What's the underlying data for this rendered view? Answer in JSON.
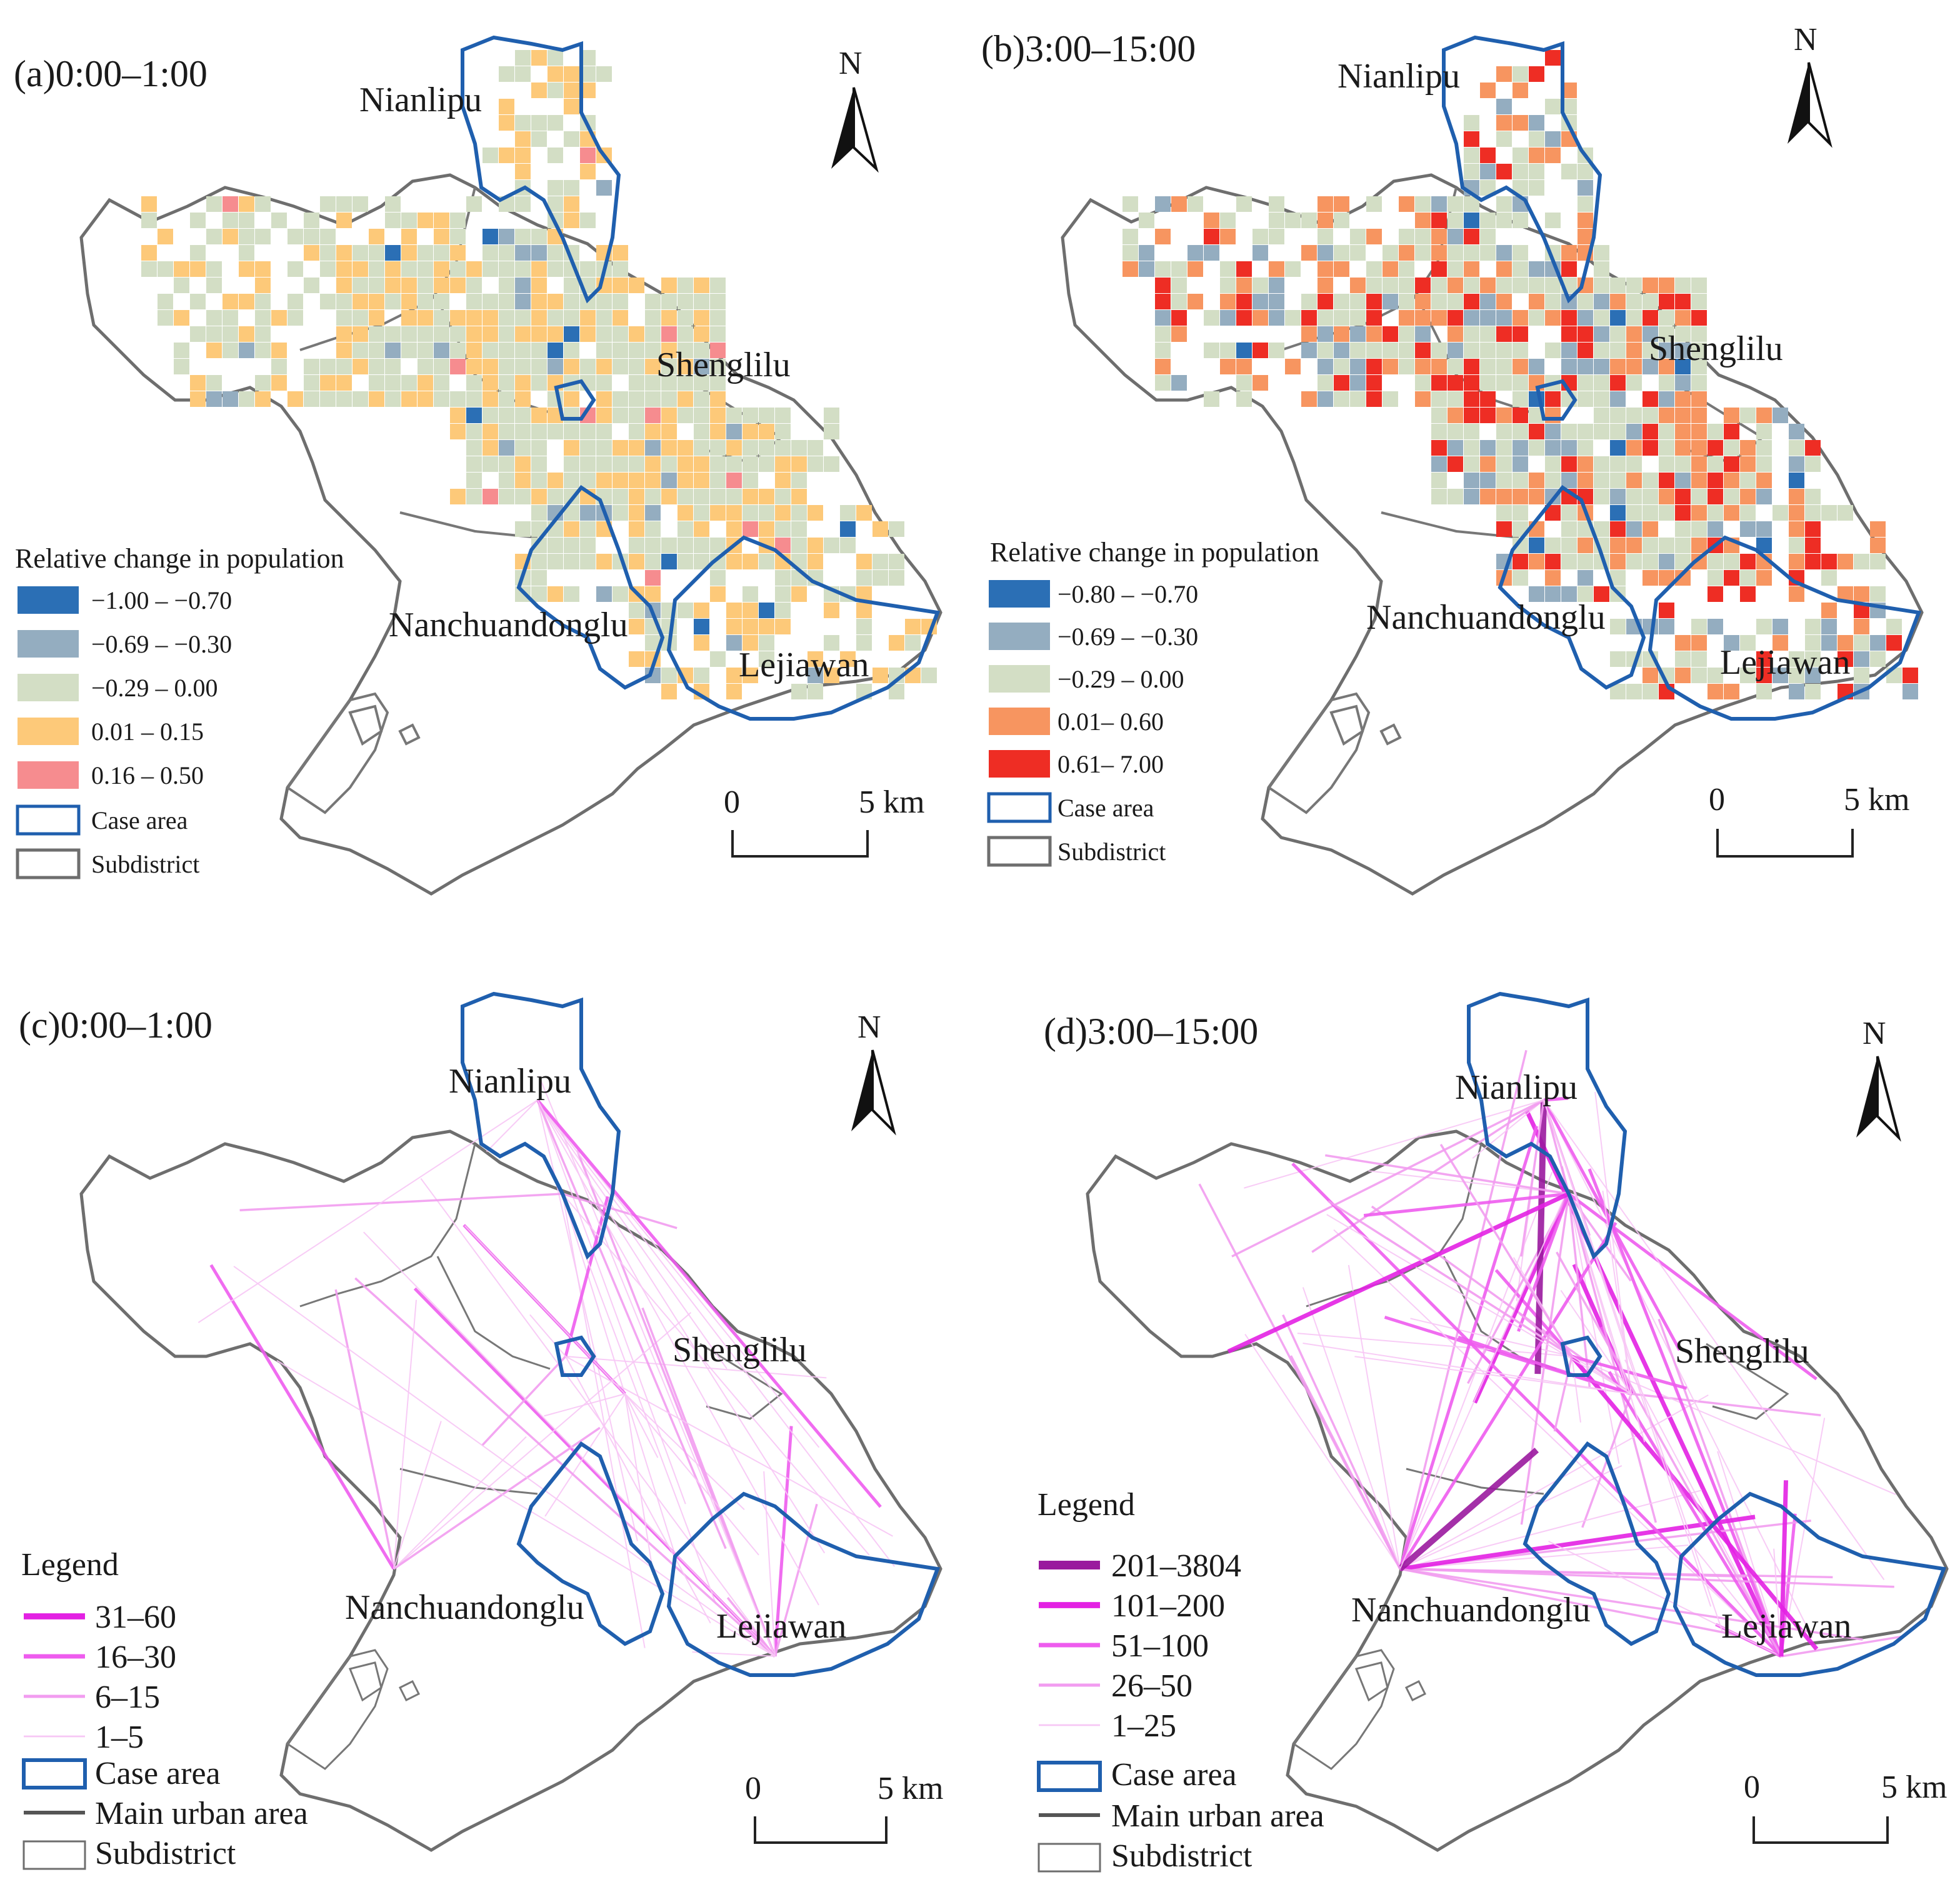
{
  "panels": {
    "a": {
      "title": "(a)0:00–1:00",
      "labels": {
        "nianlipu": "Nianlipu",
        "shenglilu": "Shenglilu",
        "nanchuandonglu": "Nanchuandonglu",
        "lejiawan": "Lejiawan"
      },
      "legend_title": "Relative change in population",
      "legend": [
        {
          "label": "−1.00 – −0.70",
          "color": "#2b6fb5"
        },
        {
          "label": "−0.69 – −0.30",
          "color": "#94adc0"
        },
        {
          "label": "−0.29 – 0.00",
          "color": "#d3dec5"
        },
        {
          "label": "0.01 – 0.15",
          "color": "#fdc979"
        },
        {
          "label": "0.16 – 0.50",
          "color": "#f68c8f"
        }
      ],
      "case_area_label": "Case area",
      "subdistrict_label": "Subdistrict",
      "scale": {
        "zero": "0",
        "end": "5 km"
      },
      "north": "N"
    },
    "b": {
      "title": "(b)3:00–15:00",
      "labels": {
        "nianlipu": "Nianlipu",
        "shenglilu": "Shenglilu",
        "nanchuandonglu": "Nanchuandonglu",
        "lejiawan": "Lejiawan"
      },
      "legend_title": "Relative change in population",
      "legend": [
        {
          "label": "−0.80 – −0.70",
          "color": "#2b6fb5"
        },
        {
          "label": "−0.69 – −0.30",
          "color": "#94adc0"
        },
        {
          "label": "−0.29 – 0.00",
          "color": "#d3dec5"
        },
        {
          "label": "0.01– 0.60",
          "color": "#f79560"
        },
        {
          "label": "0.61– 7.00",
          "color": "#ee2d24"
        }
      ],
      "case_area_label": "Case area",
      "subdistrict_label": "Subdistrict",
      "scale": {
        "zero": "0",
        "end": "5 km"
      },
      "north": "N"
    },
    "c": {
      "title": "(c)0:00–1:00",
      "labels": {
        "nianlipu": "Nianlipu",
        "shenglilu": "Shenglilu",
        "nanchuandonglu": "Nanchuandonglu",
        "lejiawan": "Lejiawan"
      },
      "legend_title": "Legend",
      "legend": [
        {
          "label": "31–60",
          "color": "#e321e3",
          "width": 7
        },
        {
          "label": "16–30",
          "color": "#ee5cee",
          "width": 5
        },
        {
          "label": "6–15",
          "color": "#f29cf0",
          "width": 3.5
        },
        {
          "label": "1–5",
          "color": "#f7c7f5",
          "width": 2
        }
      ],
      "case_area_label": "Case area",
      "main_urban_label": "Main urban area",
      "subdistrict_label": "Subdistrict",
      "scale": {
        "zero": "0",
        "end": "5 km"
      },
      "north": "N"
    },
    "d": {
      "title": "(d)3:00–15:00",
      "labels": {
        "nianlipu": "Nianlipu",
        "shenglilu": "Shenglilu",
        "nanchuandonglu": "Nanchuandonglu",
        "lejiawan": "Lejiawan"
      },
      "legend_title": "Legend",
      "legend": [
        {
          "label": "201–3804",
          "color": "#9a1a9e",
          "width": 10
        },
        {
          "label": "101–200",
          "color": "#e321e3",
          "width": 7
        },
        {
          "label": "51–100",
          "color": "#ee5cee",
          "width": 5
        },
        {
          "label": "26–50",
          "color": "#f29cf0",
          "width": 3.5
        },
        {
          "label": "1–25",
          "color": "#f7c7f5",
          "width": 2
        }
      ],
      "case_area_label": "Case area",
      "main_urban_label": "Main urban area",
      "subdistrict_label": "Subdistrict",
      "scale": {
        "zero": "0",
        "end": "5 km"
      },
      "north": "N"
    }
  },
  "colors": {
    "case_area": "#1f5fae",
    "outline": "#6e6e6e",
    "subdistrict": "#8a8a8a"
  }
}
